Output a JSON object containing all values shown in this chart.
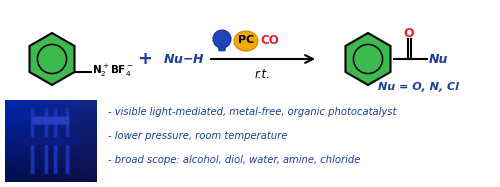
{
  "bg_color": "#ffffff",
  "green_color": "#3dba4e",
  "blue_dark": "#1a3e9c",
  "red_color": "#e8212e",
  "gold_color": "#f5a800",
  "black": "#000000",
  "bullet1": "- visible light-mediated, metal-free, organic photocatalyst",
  "bullet2": "- lower pressure, room temperature",
  "bullet3": "- broad scope: alcohol, diol, water, amine, chloride",
  "fig_width": 5.0,
  "fig_height": 1.87,
  "dpi": 100
}
